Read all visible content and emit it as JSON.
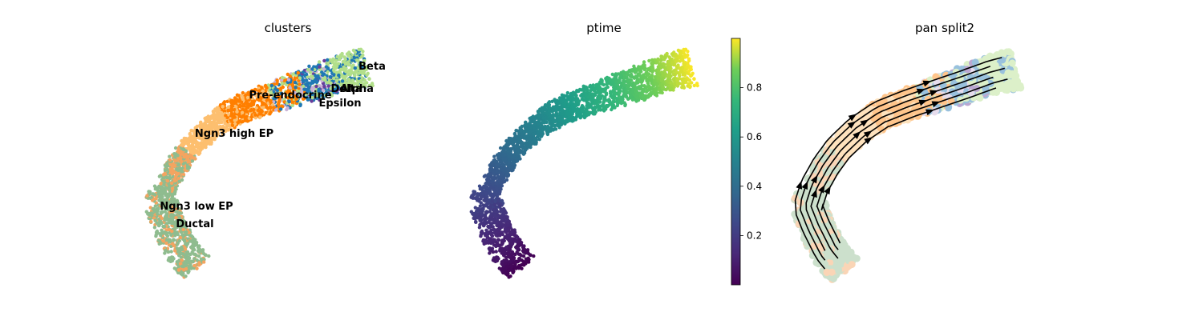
{
  "figure": {
    "panels": [
      {
        "title": "clusters"
      },
      {
        "title": "ptime"
      },
      {
        "title": "pan split2"
      }
    ]
  },
  "chart_data": [
    {
      "type": "scatter",
      "title": "clusters",
      "xlabel": "",
      "ylabel": "",
      "grid": false,
      "legend": "on data",
      "categories": [
        {
          "name": "Ductal",
          "color": "#8fbc8f"
        },
        {
          "name": "Ngn3 low EP",
          "color": "#f4a460"
        },
        {
          "name": "Ngn3 high EP",
          "color": "#fdbf6f"
        },
        {
          "name": "Pre-endocrine",
          "color": "#ff7f00"
        },
        {
          "name": "Beta",
          "color": "#b2df8a"
        },
        {
          "name": "Alpha",
          "color": "#1f78b4"
        },
        {
          "name": "Delta",
          "color": "#6a3d9a"
        },
        {
          "name": "Epsilon",
          "color": "#cab2d6"
        }
      ],
      "on_data_labels": [
        "Beta",
        "Pre-endocrine",
        "Delta",
        "Alpha",
        "Epsilon",
        "Ngn3 high EP",
        "Ngn3 low EP",
        "Ductal"
      ]
    },
    {
      "type": "scatter",
      "title": "ptime",
      "colormap": "viridis",
      "colorbar": {
        "range": [
          0.0,
          1.0
        ],
        "ticks": [
          "0.2",
          "0.4",
          "0.6",
          "0.8"
        ]
      },
      "grid": false
    },
    {
      "type": "scatter",
      "title": "pan split2",
      "overlay": "streamlines",
      "grid": false
    }
  ]
}
